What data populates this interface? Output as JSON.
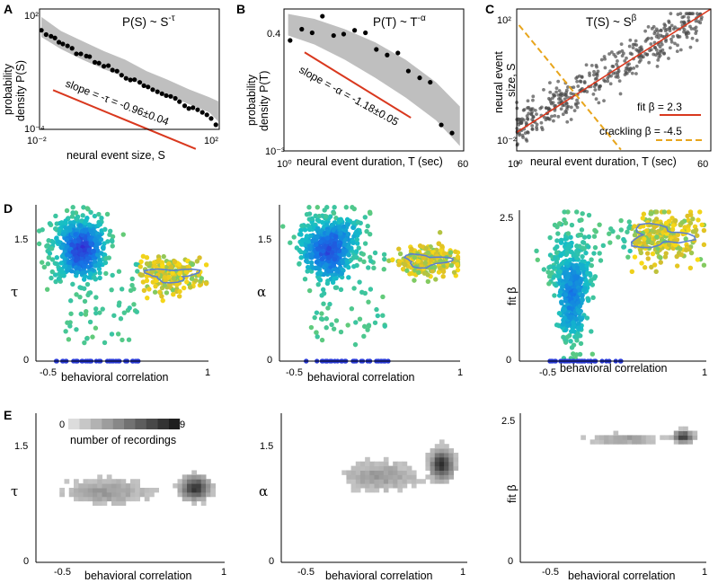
{
  "panel_labels": {
    "A": "A",
    "B": "B",
    "C": "C",
    "D": "D",
    "E": "E"
  },
  "colors": {
    "fit_line": "#d9381e",
    "crackling_line": "#e8a51c",
    "band": "#bfbfbf",
    "scatter_dark": "#4a4a4a",
    "contour": "#5b7fd1",
    "point_zero": "#2a3bd6",
    "heat_light": "#d6d6d6",
    "heat_dark": "#303030"
  },
  "chart_data": [
    {
      "id": "A",
      "type": "scatter",
      "axis_scale": "log-log",
      "title": "P(S) ~ S",
      "title_superscript": "-τ",
      "ylabel_line1": "probability",
      "ylabel_line2": "density P(S)",
      "xlabel": "neural event size, S",
      "xlim": [
        0.01,
        100
      ],
      "ylim": [
        0.0001,
        100
      ],
      "xticks": [
        "10⁻²",
        "10²"
      ],
      "yticks": [
        "10²",
        "10⁻⁴"
      ],
      "annotation": "slope = -τ = -0.96±0.04",
      "x": [
        0.011,
        0.014,
        0.018,
        0.022,
        0.027,
        0.033,
        0.042,
        0.053,
        0.066,
        0.083,
        0.11,
        0.13,
        0.17,
        0.21,
        0.27,
        0.34,
        0.42,
        0.53,
        0.67,
        0.84,
        1.05,
        1.3,
        1.7,
        2.1,
        2.6,
        3.3,
        4.2,
        5.3,
        6.6,
        8.3,
        10.5,
        13,
        17,
        21,
        26,
        33,
        42,
        53,
        66,
        84
      ],
      "y": [
        8.7,
        5.3,
        4.4,
        3.6,
        2.2,
        1.8,
        1.45,
        1.1,
        0.58,
        0.58,
        0.45,
        0.42,
        0.22,
        0.2,
        0.14,
        0.15,
        0.09,
        0.08,
        0.05,
        0.035,
        0.029,
        0.03,
        0.022,
        0.015,
        0.013,
        0.0095,
        0.0075,
        0.006,
        0.0048,
        0.0044,
        0.0035,
        0.0024,
        0.0015,
        0.0011,
        0.0012,
        0.00095,
        0.0007,
        0.00053,
        0.00035,
        0.00017
      ],
      "band_upper": [
        40,
        8,
        2.5,
        0.8,
        0.3,
        0.08,
        0.03,
        0.01,
        0.004,
        0.0025
      ],
      "band_lower": [
        4,
        1,
        0.3,
        0.1,
        0.04,
        0.013,
        0.005,
        0.0018,
        0.0007,
        0.00025
      ],
      "band_x": [
        0.011,
        0.03,
        0.09,
        0.27,
        0.8,
        2.4,
        7,
        21,
        60,
        95
      ]
    },
    {
      "id": "B",
      "type": "scatter",
      "axis_scale": "log-log",
      "title": "P(T) ~ T",
      "title_superscript": "-α",
      "ylabel_line1": "probability",
      "ylabel_line2": "density P(T)",
      "xlabel": "neural event duration, T (sec)",
      "xlim": [
        1,
        60
      ],
      "ylim": [
        0.0008,
        0.5
      ],
      "xticks": [
        "10⁰",
        "60"
      ],
      "yticks": [
        "0.4",
        "10⁻³"
      ],
      "annotation": "slope = -α = -1.18±0.05",
      "x": [
        1.15,
        1.5,
        1.9,
        2.4,
        3.1,
        3.9,
        5,
        6.4,
        8.2,
        10.5,
        13.4,
        17,
        22,
        28,
        36,
        46
      ],
      "y": [
        0.12,
        0.2,
        0.17,
        0.36,
        0.15,
        0.16,
        0.19,
        0.17,
        0.08,
        0.062,
        0.068,
        0.03,
        0.022,
        0.018,
        0.0026,
        0.0018
      ],
      "band_x": [
        1.1,
        2,
        4,
        8,
        16,
        32,
        55
      ],
      "band_upper": [
        0.4,
        0.32,
        0.2,
        0.11,
        0.05,
        0.018,
        0.006
      ],
      "band_lower": [
        0.15,
        0.1,
        0.05,
        0.022,
        0.009,
        0.0032,
        0.001
      ]
    },
    {
      "id": "C",
      "type": "scatter",
      "axis_scale": "log-log",
      "title": "T(S) ~ S",
      "title_superscript": "β",
      "ylabel_line1": "neural event",
      "ylabel_line2": "size, S",
      "xlabel": "neural event duration, T (sec)",
      "xlim": [
        1,
        60
      ],
      "ylim": [
        0.005,
        200
      ],
      "xticks": [
        "10⁰",
        "60"
      ],
      "yticks": [
        "10²",
        "10⁻²"
      ],
      "fit_beta": 2.3,
      "crackling_beta": -4.5,
      "legend": [
        "fit β = 2.3",
        "crackling β = -4.5"
      ],
      "n_points": 420
    },
    {
      "id": "D1",
      "type": "scatter",
      "color_by": "density",
      "xlabel": "behavioral correlation",
      "ylabel": "τ",
      "xlim": [
        -0.6,
        1
      ],
      "ylim": [
        0,
        1.9
      ],
      "xticks": [
        "-0.5",
        "1"
      ],
      "yticks": [
        "1.5",
        "0"
      ],
      "clusters": [
        {
          "cx": -0.2,
          "cy": 1.38,
          "sx": 0.13,
          "sy": 0.2,
          "n": 560
        },
        {
          "cx": 0.65,
          "cy": 1.05,
          "sx": 0.16,
          "sy": 0.1,
          "n": 230
        }
      ],
      "zero_row_x": [
        -0.45,
        0.35
      ]
    },
    {
      "id": "D2",
      "type": "scatter",
      "color_by": "density",
      "xlabel": "behavioral correlation",
      "ylabel": "α",
      "xlim": [
        -0.6,
        1
      ],
      "ylim": [
        0,
        1.9
      ],
      "xticks": [
        "-0.5",
        "1"
      ],
      "yticks": [
        "1.5",
        "0"
      ],
      "clusters": [
        {
          "cx": -0.15,
          "cy": 1.4,
          "sx": 0.14,
          "sy": 0.2,
          "n": 560
        },
        {
          "cx": 0.7,
          "cy": 1.22,
          "sx": 0.14,
          "sy": 0.09,
          "n": 230
        }
      ],
      "zero_row_x": [
        -0.4,
        0.38
      ]
    },
    {
      "id": "D3",
      "type": "scatter",
      "color_by": "density",
      "xlabel": "behavioral correlation",
      "ylabel": "fit β",
      "xlim": [
        -0.6,
        1
      ],
      "ylim": [
        0,
        2.6
      ],
      "xticks": [
        "-0.5",
        "1"
      ],
      "yticks": [
        "2.5",
        "0"
      ],
      "clusters": [
        {
          "cx": -0.15,
          "cy": 1.3,
          "sx": 0.1,
          "sy": 0.5,
          "n": 560
        },
        {
          "cx": 0.6,
          "cy": 2.15,
          "sx": 0.18,
          "sy": 0.22,
          "n": 260
        }
      ],
      "zero_row_x": [
        -0.35,
        0.28
      ]
    },
    {
      "id": "E1",
      "type": "heatmap",
      "xlabel": "behavioral correlation",
      "ylabel": "τ",
      "xlim": [
        -0.6,
        1
      ],
      "ylim": [
        0,
        1.9
      ],
      "xticks": [
        "-0.5",
        "1"
      ],
      "yticks": [
        "1.5",
        "0"
      ],
      "colorbar_min": "0",
      "colorbar_max": "9",
      "colorbar_label": "number of recordings"
    },
    {
      "id": "E2",
      "type": "heatmap",
      "xlabel": "behavioral correlation",
      "ylabel": "α",
      "xlim": [
        -0.6,
        1
      ],
      "ylim": [
        0,
        1.9
      ],
      "xticks": [
        "-0.5",
        "1"
      ],
      "yticks": [
        "1.5",
        "0"
      ]
    },
    {
      "id": "E3",
      "type": "heatmap",
      "xlabel": "behavioral correlation",
      "ylabel": "fit β",
      "xlim": [
        -0.6,
        1
      ],
      "ylim": [
        0,
        2.6
      ],
      "xticks": [
        "-0.5",
        "1"
      ],
      "yticks": [
        "2.5",
        "0"
      ]
    }
  ]
}
